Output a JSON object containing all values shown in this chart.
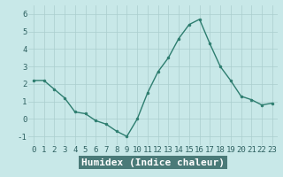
{
  "x": [
    0,
    1,
    2,
    3,
    4,
    5,
    6,
    7,
    8,
    9,
    10,
    11,
    12,
    13,
    14,
    15,
    16,
    17,
    18,
    19,
    20,
    21,
    22,
    23
  ],
  "y": [
    2.2,
    2.2,
    1.7,
    1.2,
    0.4,
    0.3,
    -0.1,
    -0.3,
    -0.7,
    -1.0,
    0.0,
    1.5,
    2.7,
    3.5,
    4.6,
    5.4,
    5.7,
    4.3,
    3.0,
    2.2,
    1.3,
    1.1,
    0.8,
    0.9
  ],
  "xlabel": "Humidex (Indice chaleur)",
  "ylim": [
    -1.5,
    6.5
  ],
  "xlim": [
    -0.5,
    23.5
  ],
  "yticks": [
    -1,
    0,
    1,
    2,
    3,
    4,
    5,
    6
  ],
  "xticks": [
    0,
    1,
    2,
    3,
    4,
    5,
    6,
    7,
    8,
    9,
    10,
    11,
    12,
    13,
    14,
    15,
    16,
    17,
    18,
    19,
    20,
    21,
    22,
    23
  ],
  "line_color": "#2d7d6f",
  "marker_color": "#2d7d6f",
  "bg_color": "#c8e8e8",
  "grid_color": "#aacece",
  "axes_bg": "#c8e8e8",
  "xlabel_color": "#2d6060",
  "xlabel_fontsize": 8,
  "tick_fontsize": 6.5,
  "bottom_label_bg": "#4a7a78",
  "bottom_label_fg": "#ffffff"
}
